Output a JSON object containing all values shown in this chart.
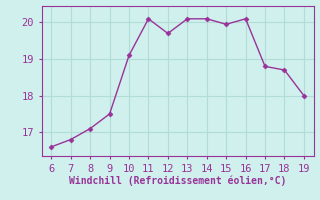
{
  "x": [
    6,
    7,
    8,
    9,
    10,
    11,
    12,
    13,
    14,
    15,
    16,
    17,
    18,
    19
  ],
  "y": [
    16.6,
    16.8,
    17.1,
    17.5,
    19.1,
    20.1,
    19.7,
    20.1,
    20.1,
    19.95,
    20.1,
    18.8,
    18.7,
    18.0
  ],
  "line_color": "#993399",
  "marker": "D",
  "marker_size": 2.5,
  "background_color": "#cff0ec",
  "grid_color": "#b0ddd6",
  "xlabel": "Windchill (Refroidissement éolien,°C)",
  "xlabel_color": "#993399",
  "tick_color": "#993399",
  "spine_color": "#993399",
  "xlim": [
    5.5,
    19.5
  ],
  "ylim": [
    16.35,
    20.45
  ],
  "yticks": [
    17,
    18,
    19,
    20
  ],
  "xticks": [
    6,
    7,
    8,
    9,
    10,
    11,
    12,
    13,
    14,
    15,
    16,
    17,
    18,
    19
  ],
  "tick_fontsize": 7.5,
  "xlabel_fontsize": 7.0,
  "linewidth": 1.0
}
